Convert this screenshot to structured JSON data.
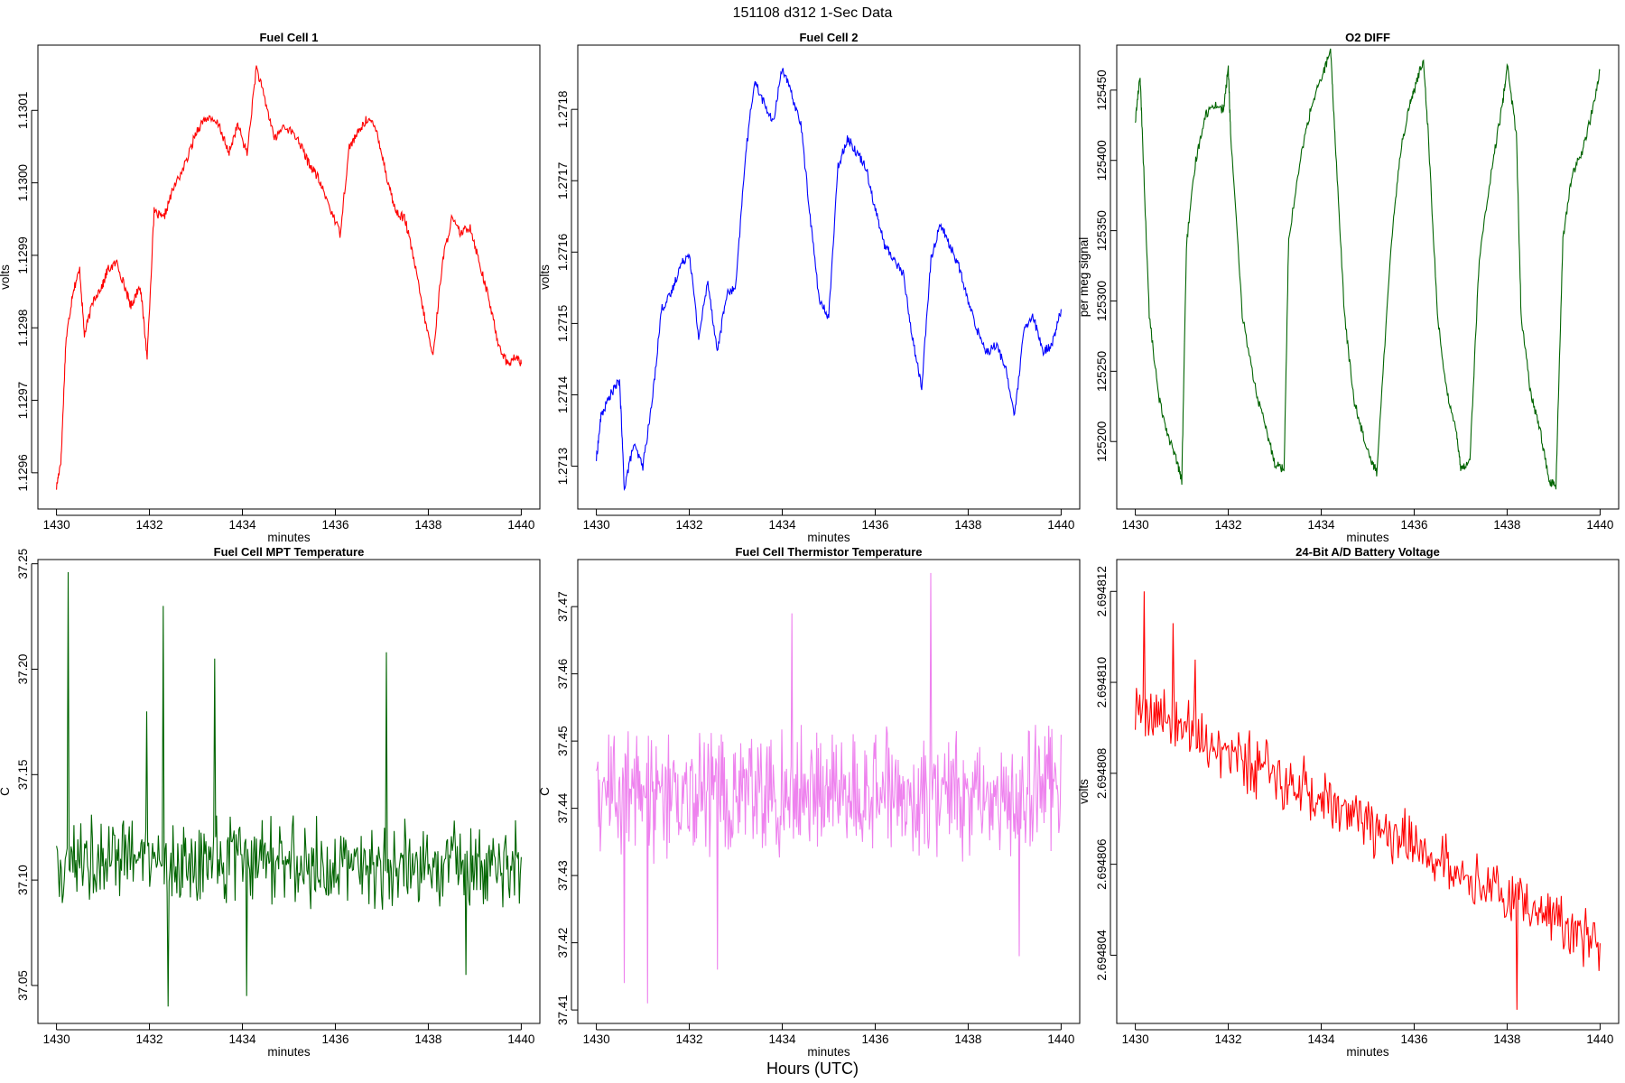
{
  "figure": {
    "title": "151108   d312   1-Sec Data",
    "footer_label": "Hours (UTC)"
  },
  "chart_data": [
    {
      "type": "line",
      "title": "Fuel Cell 1",
      "xlabel": "minutes",
      "ylabel": "volts",
      "color": "#ff0000",
      "xlim": [
        1429.6,
        1440.4
      ],
      "ylim": [
        1.12955,
        1.13019
      ],
      "x_ticks": [
        1430,
        1432,
        1434,
        1436,
        1438,
        1440
      ],
      "y_ticks": [
        1.1296,
        1.1297,
        1.1298,
        1.1299,
        1.13,
        1.1301
      ],
      "y_tick_labels": [
        "1.1296",
        "1.1297",
        "1.1298",
        "1.1299",
        "1.1300",
        "1.1301"
      ],
      "x": [
        1430,
        1430.1,
        1430.2,
        1430.35,
        1430.5,
        1430.6,
        1430.8,
        1431,
        1431.1,
        1431.3,
        1431.5,
        1431.6,
        1431.8,
        1431.95,
        1432.1,
        1432.3,
        1432.5,
        1432.8,
        1433,
        1433.2,
        1433.5,
        1433.7,
        1433.9,
        1434.1,
        1434.3,
        1434.5,
        1434.7,
        1434.9,
        1435.2,
        1435.4,
        1435.6,
        1435.8,
        1436.1,
        1436.3,
        1436.5,
        1436.7,
        1436.9,
        1437.1,
        1437.3,
        1437.5,
        1437.7,
        1437.9,
        1438.1,
        1438.3,
        1438.5,
        1438.7,
        1438.9,
        1439.1,
        1439.3,
        1439.5,
        1439.7,
        1439.9,
        1440
      ],
      "values": [
        1.12958,
        1.12962,
        1.12978,
        1.12985,
        1.12988,
        1.12979,
        1.12984,
        1.12986,
        1.12988,
        1.12989,
        1.12985,
        1.12983,
        1.12986,
        1.12976,
        1.12996,
        1.12995,
        1.12999,
        1.13003,
        1.13007,
        1.13009,
        1.13008,
        1.13004,
        1.13008,
        1.13004,
        1.13016,
        1.13011,
        1.13006,
        1.13008,
        1.13006,
        1.13003,
        1.13001,
        1.12998,
        1.12993,
        1.13005,
        1.13007,
        1.13009,
        1.13007,
        1.13001,
        1.12996,
        1.12995,
        1.12989,
        1.12982,
        1.12976,
        1.12989,
        1.12995,
        1.12993,
        1.12994,
        1.12989,
        1.12984,
        1.12978,
        1.12975,
        1.12976,
        1.12975
      ]
    },
    {
      "type": "line",
      "title": "Fuel Cell 2",
      "xlabel": "minutes",
      "ylabel": "volts",
      "color": "#0000ff",
      "xlim": [
        1429.6,
        1440.4
      ],
      "ylim": [
        1.27124,
        1.27189
      ],
      "x_ticks": [
        1430,
        1432,
        1434,
        1436,
        1438,
        1440
      ],
      "y_ticks": [
        1.2713,
        1.2714,
        1.2715,
        1.2716,
        1.2717,
        1.2718
      ],
      "y_tick_labels": [
        "1.2713",
        "1.2714",
        "1.2715",
        "1.2716",
        "1.2717",
        "1.2718"
      ],
      "x": [
        1430,
        1430.1,
        1430.3,
        1430.5,
        1430.6,
        1430.8,
        1431,
        1431.2,
        1431.4,
        1431.6,
        1431.8,
        1432,
        1432.2,
        1432.4,
        1432.6,
        1432.8,
        1433,
        1433.2,
        1433.4,
        1433.6,
        1433.8,
        1434,
        1434.2,
        1434.4,
        1434.6,
        1434.8,
        1435,
        1435.2,
        1435.4,
        1435.6,
        1435.8,
        1436,
        1436.2,
        1436.4,
        1436.6,
        1436.8,
        1437,
        1437.2,
        1437.4,
        1437.6,
        1437.8,
        1438,
        1438.2,
        1438.4,
        1438.6,
        1438.8,
        1439,
        1439.2,
        1439.4,
        1439.6,
        1439.8,
        1440
      ],
      "values": [
        1.27131,
        1.27137,
        1.2714,
        1.27142,
        1.27127,
        1.27133,
        1.2713,
        1.27139,
        1.27152,
        1.27154,
        1.27158,
        1.2716,
        1.27148,
        1.27156,
        1.27146,
        1.27154,
        1.27155,
        1.27173,
        1.27184,
        1.27181,
        1.27178,
        1.27186,
        1.27182,
        1.27178,
        1.27165,
        1.27153,
        1.27151,
        1.27172,
        1.27176,
        1.27174,
        1.27172,
        1.27166,
        1.27161,
        1.27159,
        1.27157,
        1.27148,
        1.27141,
        1.27159,
        1.27164,
        1.27161,
        1.27158,
        1.27153,
        1.27149,
        1.27146,
        1.27147,
        1.27144,
        1.27137,
        1.27149,
        1.27151,
        1.27146,
        1.27147,
        1.27152
      ]
    },
    {
      "type": "line",
      "title": "O2 DIFF",
      "xlabel": "minutes",
      "ylabel": "per meg signal",
      "color": "#006400",
      "xlim": [
        1429.6,
        1440.4
      ],
      "ylim": [
        125152,
        125482
      ],
      "x_ticks": [
        1430,
        1432,
        1434,
        1436,
        1438,
        1440
      ],
      "y_ticks": [
        125200,
        125250,
        125300,
        125350,
        125400,
        125450
      ],
      "y_tick_labels": [
        "125200",
        "125250",
        "125300",
        "125350",
        "125400",
        "125450"
      ],
      "x": [
        1430,
        1430.1,
        1430.15,
        1430.3,
        1430.5,
        1430.7,
        1430.9,
        1431,
        1431.1,
        1431.3,
        1431.5,
        1431.7,
        1431.9,
        1432,
        1432.05,
        1432.3,
        1432.6,
        1432.8,
        1433,
        1433.2,
        1433.3,
        1433.6,
        1433.8,
        1434,
        1434.2,
        1434.3,
        1434.5,
        1434.7,
        1434.9,
        1435.1,
        1435.2,
        1435.5,
        1435.7,
        1435.9,
        1436,
        1436.2,
        1436.3,
        1436.5,
        1436.7,
        1436.9,
        1437,
        1437.2,
        1437.4,
        1437.7,
        1437.9,
        1438,
        1438.2,
        1438.3,
        1438.5,
        1438.7,
        1438.9,
        1439.05,
        1439.2,
        1439.4,
        1439.6,
        1439.8,
        1440
      ],
      "values": [
        125428,
        125461,
        125420,
        125290,
        125232,
        125205,
        125185,
        125172,
        125340,
        125400,
        125432,
        125440,
        125436,
        125466,
        125420,
        125290,
        125235,
        125210,
        125185,
        125180,
        125345,
        125410,
        125440,
        125458,
        125478,
        125415,
        125290,
        125230,
        125205,
        125185,
        125178,
        125340,
        125405,
        125440,
        125450,
        125472,
        125420,
        125290,
        125235,
        125210,
        125180,
        125188,
        125330,
        125400,
        125440,
        125468,
        125418,
        125290,
        125235,
        125210,
        125172,
        125168,
        125345,
        125390,
        125405,
        125430,
        125464
      ]
    },
    {
      "type": "line",
      "title": "Fuel Cell MPT Temperature",
      "xlabel": "minutes",
      "ylabel": "C",
      "color": "#006400",
      "xlim": [
        1429.6,
        1440.4
      ],
      "ylim": [
        37.032,
        37.252
      ],
      "x_ticks": [
        1430,
        1432,
        1434,
        1436,
        1438,
        1440
      ],
      "y_ticks": [
        37.05,
        37.1,
        37.15,
        37.2,
        37.25
      ],
      "y_tick_labels": [
        "37.05",
        "37.10",
        "37.15",
        "37.20",
        "37.25"
      ],
      "x_start": 1430,
      "x_end": 1440,
      "n_points": 480,
      "center": 37.108,
      "noise_amplitude": 0.025,
      "spikes": [
        [
          1430.25,
          37.246
        ],
        [
          1432.3,
          37.23
        ],
        [
          1433.4,
          37.205
        ],
        [
          1437.1,
          37.208
        ],
        [
          1431.95,
          37.18
        ],
        [
          1434.1,
          37.045
        ],
        [
          1432.4,
          37.04
        ],
        [
          1438.8,
          37.055
        ]
      ]
    },
    {
      "type": "line",
      "title": "Fuel Cell Thermistor Temperature",
      "xlabel": "minutes",
      "ylabel": "C",
      "color": "#ee82ee",
      "xlim": [
        1429.6,
        1440.4
      ],
      "ylim": [
        37.408,
        37.477
      ],
      "x_ticks": [
        1430,
        1432,
        1434,
        1436,
        1438,
        1440
      ],
      "y_ticks": [
        37.41,
        37.42,
        37.43,
        37.44,
        37.45,
        37.46,
        37.47
      ],
      "y_tick_labels": [
        "37.41",
        "37.42",
        "37.43",
        "37.44",
        "37.45",
        "37.46",
        "37.47"
      ],
      "x_start": 1430,
      "x_end": 1440,
      "n_points": 600,
      "center": 37.442,
      "noise_amplitude": 0.011,
      "spikes": [
        [
          1437.2,
          37.475
        ],
        [
          1434.2,
          37.469
        ],
        [
          1431.1,
          37.411
        ],
        [
          1430.6,
          37.414
        ],
        [
          1432.6,
          37.416
        ],
        [
          1439.1,
          37.418
        ]
      ]
    },
    {
      "type": "line",
      "title": "24-Bit A/D Battery Voltage",
      "xlabel": "minutes",
      "ylabel": "volts",
      "color": "#ff0000",
      "xlim": [
        1429.6,
        1440.4
      ],
      "ylim": [
        2.6948025,
        2.6948127
      ],
      "x_ticks": [
        1430,
        1432,
        1434,
        1436,
        1438,
        1440
      ],
      "y_ticks": [
        2.694804,
        2.694806,
        2.694808,
        2.69481,
        2.694812
      ],
      "y_tick_labels": [
        "2.694804",
        "2.694806",
        "2.694808",
        "2.694810",
        "2.694812"
      ],
      "x_start": 1430,
      "x_end": 1440,
      "n_points": 420,
      "trend_start": 2.6948095,
      "trend_end": 2.6948043,
      "noise_amplitude": 8e-07,
      "spikes": [
        [
          1430.2,
          2.694812
        ],
        [
          1431.3,
          2.6948105
        ],
        [
          1438.2,
          2.6948028
        ],
        [
          1430.8,
          2.6948113
        ]
      ]
    }
  ]
}
